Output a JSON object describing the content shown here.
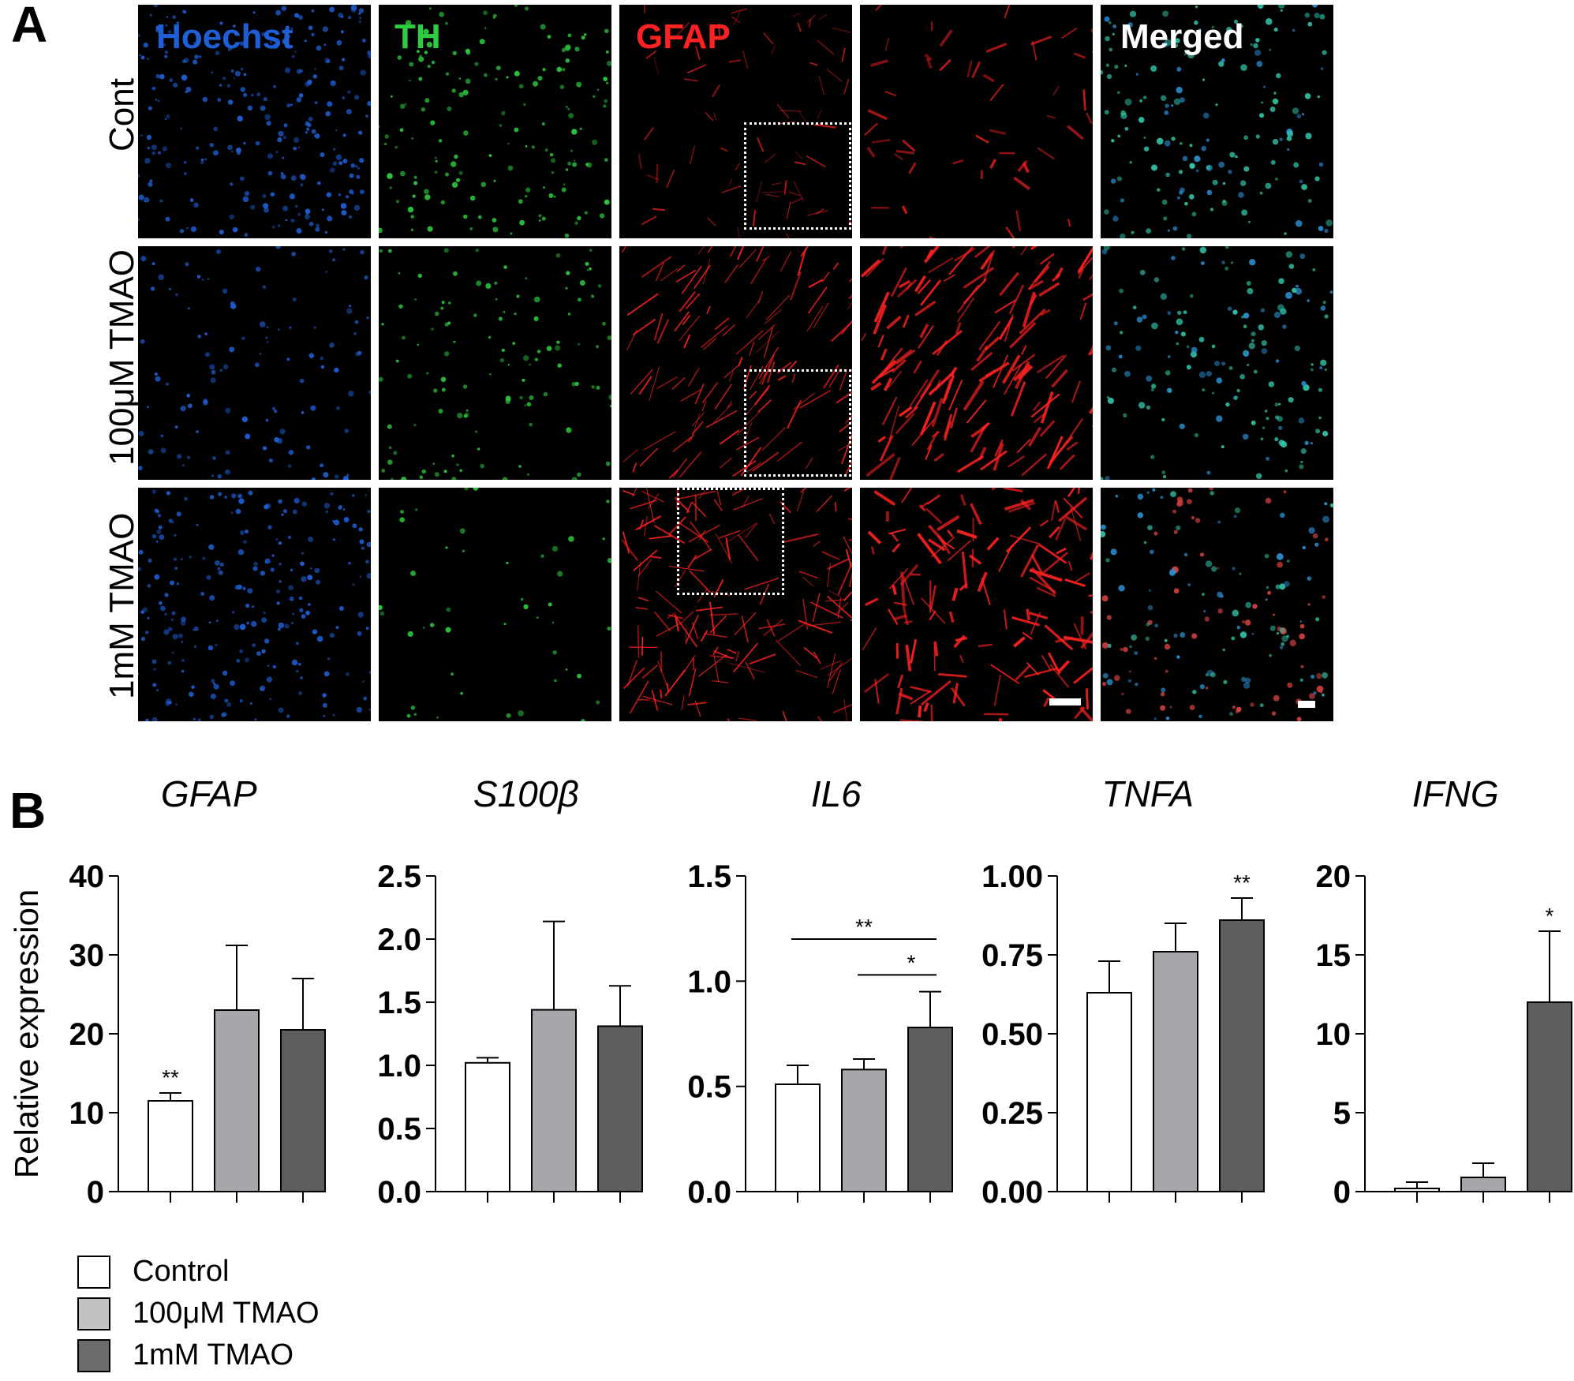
{
  "panel_a": {
    "letter": "A",
    "channels": [
      {
        "label": "Hoechst",
        "color": "#1f5fd6"
      },
      {
        "label": "TH",
        "color": "#2ecc40"
      },
      {
        "label": "GFAP",
        "color": "#ff2222"
      },
      {
        "label": "",
        "color": "#ff2222"
      },
      {
        "label": "Merged",
        "color": "#ffffff"
      }
    ],
    "rows": [
      "Cont",
      "100μM TMAO",
      "1mM TMAO"
    ]
  },
  "panel_b": {
    "letter": "B"
  },
  "colors": {
    "control": "#ffffff",
    "tmao_100um": "#a7a7ab",
    "tmao_1mm": "#5e5e5e",
    "axis": "#000000"
  },
  "legend": [
    {
      "label": "Control",
      "color": "#ffffff"
    },
    {
      "label": "100μM TMAO",
      "color": "#c2c2c2"
    },
    {
      "label": "1mM TMAO",
      "color": "#6b6b6b"
    }
  ],
  "chart_data": [
    {
      "type": "bar",
      "title": "GFAP",
      "ylabel": "Relative expression",
      "ylim": [
        0,
        40
      ],
      "ticks": [
        "0",
        "10",
        "20",
        "30",
        "40"
      ],
      "categories": [
        "Control",
        "100μM TMAO",
        "1mM TMAO"
      ],
      "values": [
        11.5,
        23.0,
        20.5
      ],
      "errors": [
        1.0,
        8.2,
        6.5
      ],
      "significance": [
        {
          "bar": 0,
          "label": "**"
        }
      ],
      "brackets": []
    },
    {
      "type": "bar",
      "title": "S100β",
      "ylabel": "",
      "ylim": [
        0,
        2.5
      ],
      "ticks": [
        "0.0",
        "0.5",
        "1.0",
        "1.5",
        "2.0",
        "2.5"
      ],
      "categories": [
        "Control",
        "100μM TMAO",
        "1mM TMAO"
      ],
      "values": [
        1.02,
        1.44,
        1.31
      ],
      "errors": [
        0.04,
        0.7,
        0.32
      ],
      "significance": [],
      "brackets": []
    },
    {
      "type": "bar",
      "title": "IL6",
      "ylabel": "",
      "ylim": [
        0,
        1.5
      ],
      "ticks": [
        "0.0",
        "0.5",
        "1.0",
        "1.5"
      ],
      "categories": [
        "Control",
        "100μM TMAO",
        "1mM TMAO"
      ],
      "values": [
        0.51,
        0.58,
        0.78
      ],
      "errors": [
        0.09,
        0.05,
        0.17
      ],
      "significance": [],
      "brackets": [
        {
          "from": 0,
          "to": 2,
          "y": 1.2,
          "label": "**"
        },
        {
          "from": 1,
          "to": 2,
          "y": 1.03,
          "label": "*"
        }
      ]
    },
    {
      "type": "bar",
      "title": "TNFA",
      "ylabel": "",
      "ylim": [
        0,
        1.0
      ],
      "ticks": [
        "0.00",
        "0.25",
        "0.50",
        "0.75",
        "1.00"
      ],
      "categories": [
        "Control",
        "100μM TMAO",
        "1mM TMAO"
      ],
      "values": [
        0.63,
        0.76,
        0.86
      ],
      "errors": [
        0.1,
        0.09,
        0.07
      ],
      "significance": [
        {
          "bar": 2,
          "label": "**"
        }
      ],
      "brackets": []
    },
    {
      "type": "bar",
      "title": "IFNG",
      "ylabel": "",
      "ylim": [
        0,
        20
      ],
      "ticks": [
        "0",
        "5",
        "10",
        "15",
        "20"
      ],
      "categories": [
        "Control",
        "100μM TMAO",
        "1mM TMAO"
      ],
      "values": [
        0.2,
        0.9,
        12.0
      ],
      "errors": [
        0.4,
        0.9,
        4.5
      ],
      "significance": [
        {
          "bar": 2,
          "label": "*"
        }
      ],
      "brackets": []
    }
  ]
}
